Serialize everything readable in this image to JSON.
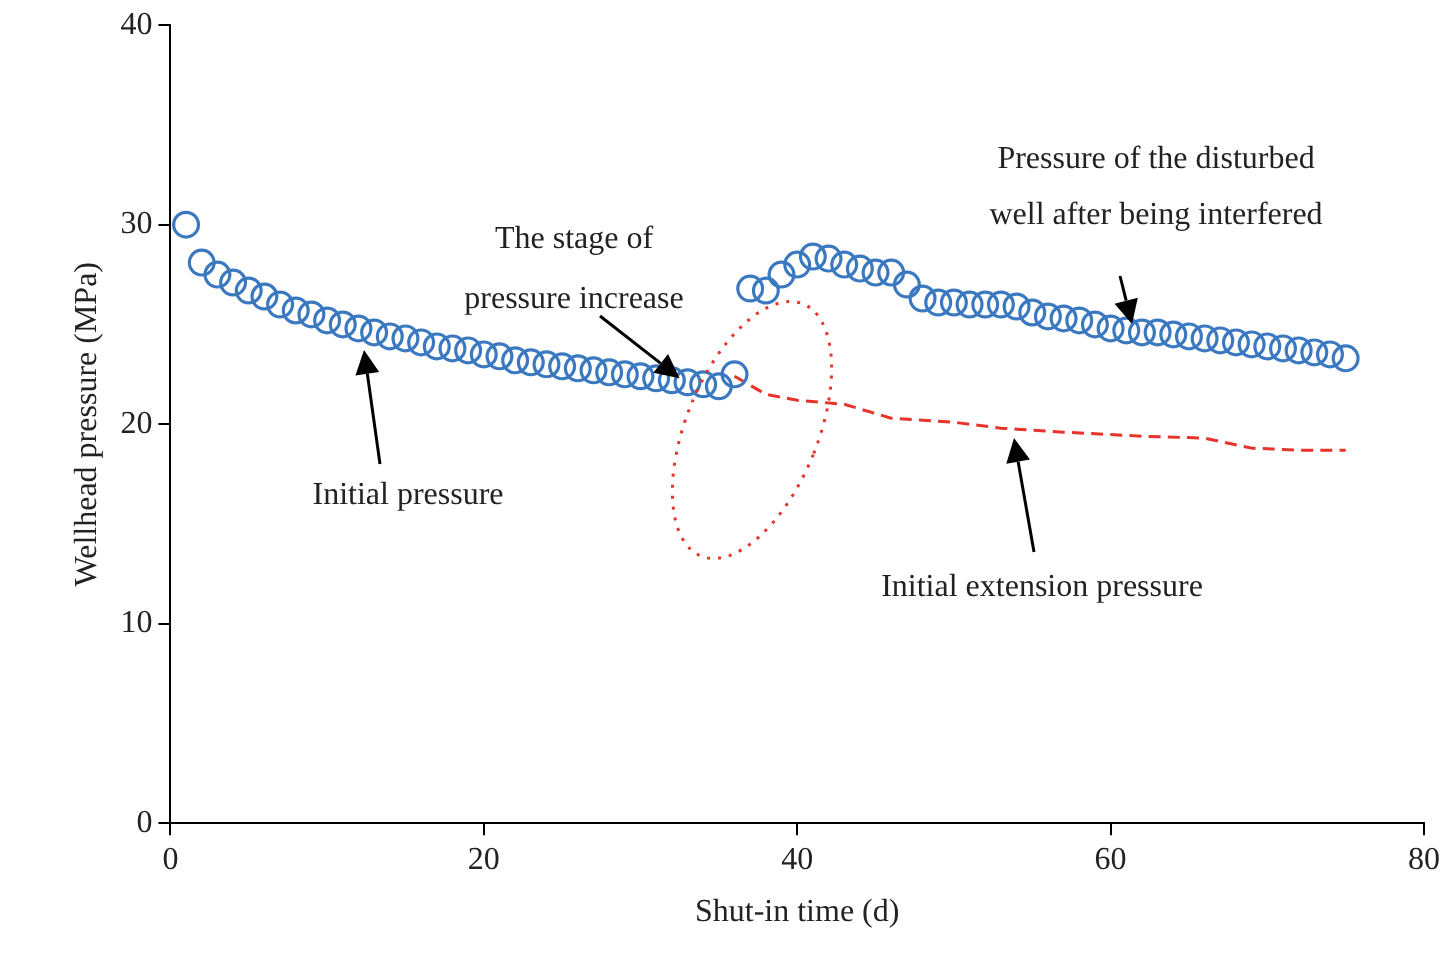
{
  "chart_data": {
    "type": "scatter",
    "xlabel": "Shut-in time (d)",
    "ylabel": "Wellhead pressure (MPa)",
    "xlim": [
      0,
      80
    ],
    "xticks": [
      0,
      20,
      40,
      60,
      80
    ],
    "ylim": [
      0,
      40
    ],
    "yticks": [
      0,
      10,
      20,
      30,
      40
    ],
    "grid": false,
    "legend": false,
    "series": [
      {
        "type": "scatter",
        "marker": "circle",
        "color": "#3a78c0",
        "x": [
          1,
          2,
          3,
          4,
          5,
          6,
          7,
          8,
          9,
          10,
          11,
          12,
          13,
          14,
          15,
          16,
          17,
          18,
          19,
          20,
          21,
          22,
          23,
          24,
          25,
          26,
          27,
          28,
          29,
          30,
          31,
          32,
          33,
          34,
          35,
          36,
          37,
          38,
          39,
          40,
          41,
          42,
          43,
          44,
          45,
          46,
          47,
          48,
          49,
          50,
          51,
          52,
          53,
          54,
          55,
          56,
          57,
          58,
          59,
          60,
          61,
          62,
          63,
          64,
          65,
          66,
          67,
          68,
          69,
          70,
          71,
          72,
          73,
          74,
          75
        ],
        "values": [
          30.0,
          28.1,
          27.5,
          27.1,
          26.7,
          26.4,
          26.0,
          25.7,
          25.5,
          25.2,
          25.0,
          24.8,
          24.6,
          24.4,
          24.3,
          24.1,
          23.9,
          23.8,
          23.7,
          23.5,
          23.4,
          23.2,
          23.1,
          23.0,
          22.9,
          22.8,
          22.7,
          22.6,
          22.5,
          22.4,
          22.3,
          22.2,
          22.1,
          22.0,
          21.9,
          22.5,
          26.8,
          26.7,
          27.5,
          28.0,
          28.4,
          28.3,
          28.0,
          27.8,
          27.6,
          27.6,
          27.0,
          26.3,
          26.1,
          26.1,
          26.0,
          26.0,
          26.0,
          25.9,
          25.6,
          25.4,
          25.3,
          25.2,
          25.0,
          24.8,
          24.7,
          24.6,
          24.6,
          24.5,
          24.4,
          24.3,
          24.2,
          24.1,
          24.0,
          23.9,
          23.8,
          23.7,
          23.6,
          23.5,
          23.3
        ]
      },
      {
        "type": "line",
        "line_style": "dashed",
        "marker": "none",
        "color": "#e8332a",
        "x": [
          36,
          38,
          40,
          43,
          46,
          50,
          53,
          57,
          62,
          66,
          69,
          72,
          75
        ],
        "values": [
          22.4,
          21.5,
          21.2,
          21.0,
          20.3,
          20.1,
          19.8,
          19.6,
          19.4,
          19.3,
          18.8,
          18.7,
          18.7
        ]
      }
    ],
    "annotations": [
      {
        "text": "The stage of\npressure increase",
        "x": 33,
        "y": 22
      },
      "Pressure of the disturbed\nwell after being interfered",
      "Initial pressure",
      "Initial extension pressure"
    ]
  }
}
